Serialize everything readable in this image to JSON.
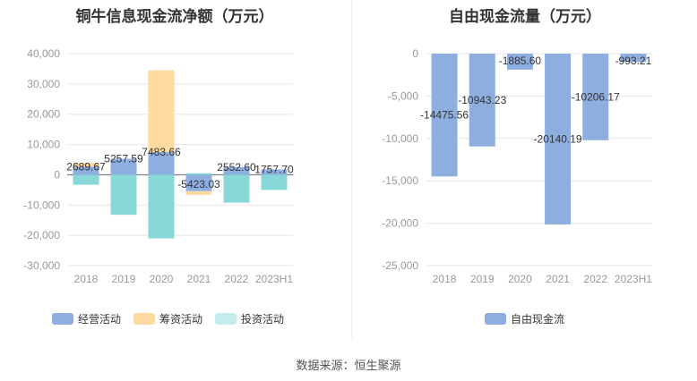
{
  "source": "数据来源：恒生聚源",
  "colors": {
    "operating": "#8eaee0",
    "financing": "#fedaa0",
    "investing": "#88d8d8",
    "fcf": "#8eaee0",
    "grid": "#e6e6e6",
    "zero": "#666666"
  },
  "chart_data": [
    {
      "type": "bar",
      "stacked": true,
      "title": "铜牛信息现金流净额（万元）",
      "categories": [
        "2018",
        "2019",
        "2020",
        "2021",
        "2022",
        "2023H1"
      ],
      "ylim": [
        -30000,
        40000
      ],
      "yticks": [
        40000,
        30000,
        20000,
        10000,
        0,
        -10000,
        -20000,
        -30000
      ],
      "ytick_labels": [
        "40,000",
        "30,000",
        "20,000",
        "10,000",
        "0",
        "-10,000",
        "-20,000",
        "-30,000"
      ],
      "series": [
        {
          "name": "经营活动",
          "color": "#8eaee0",
          "values": [
            2689.67,
            5257.59,
            7483.66,
            -5423.03,
            2552.6,
            1757.7
          ]
        },
        {
          "name": "筹资活动",
          "color": "#fedaa0",
          "values": [
            1200,
            0,
            27000,
            -1200,
            0,
            0
          ]
        },
        {
          "name": "投资活动",
          "color": "#88d8d8",
          "values": [
            -3300,
            -13200,
            -21000,
            500,
            -9200,
            -5000
          ]
        }
      ],
      "data_labels": [
        "2689.67",
        "5257.59",
        "7483.66",
        "-5423.03",
        "2552.60",
        "1757.70"
      ],
      "legend": [
        "经营活动",
        "筹资活动",
        "投资活动"
      ]
    },
    {
      "type": "bar",
      "title": "自由现金流量（万元）",
      "categories": [
        "2018",
        "2019",
        "2020",
        "2021",
        "2022",
        "2023H1"
      ],
      "ylim": [
        -25000,
        0
      ],
      "yticks": [
        0,
        -5000,
        -10000,
        -15000,
        -20000,
        -25000
      ],
      "ytick_labels": [
        "0",
        "-5,000",
        "-10,000",
        "-15,000",
        "-20,000",
        "-25,000"
      ],
      "series": [
        {
          "name": "自由现金流",
          "color": "#8eaee0",
          "values": [
            -14475.56,
            -10943.23,
            -1885.6,
            -20140.19,
            -10206.17,
            -993.21
          ]
        }
      ],
      "data_labels": [
        "-14475.56",
        "-10943.23",
        "-1885.60",
        "-20140.19",
        "-10206.17",
        "-993.21"
      ],
      "legend": [
        "自由现金流"
      ]
    }
  ]
}
